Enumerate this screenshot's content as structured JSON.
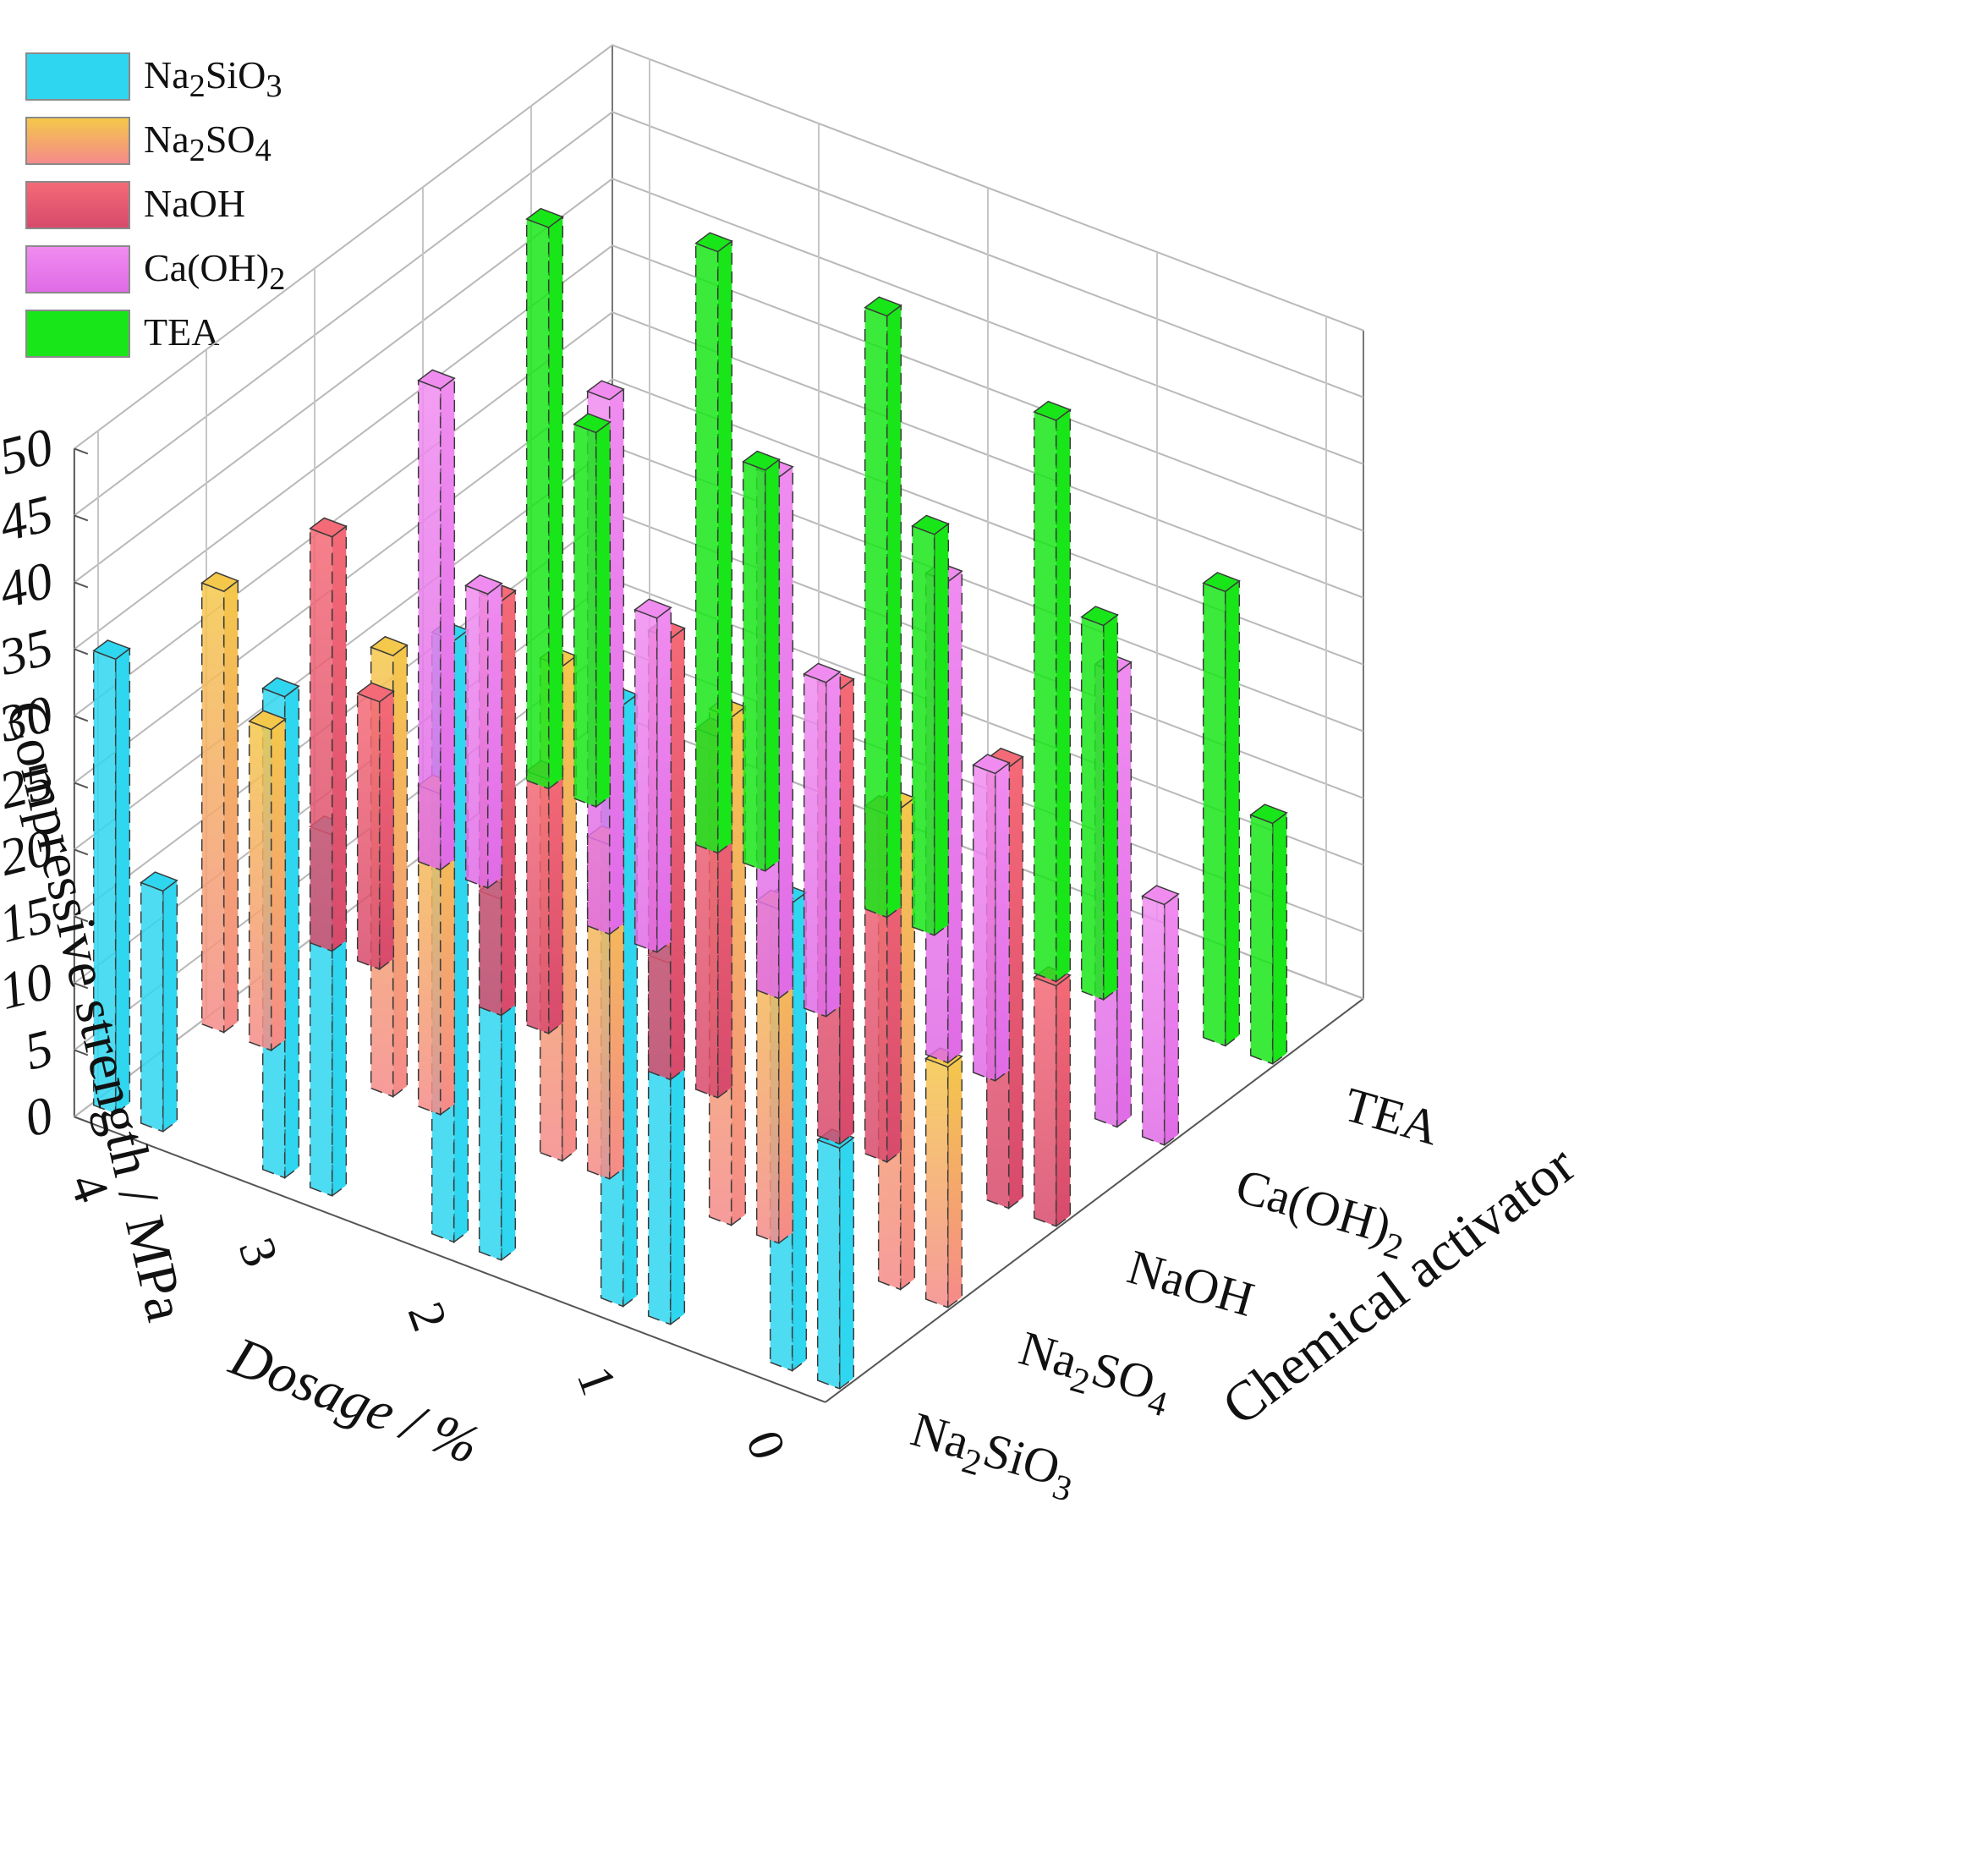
{
  "chart_data": {
    "type": "bar3d",
    "title": "",
    "zlabel": "Compressive strength / MPa",
    "xlabel": "Dosage / %",
    "ylabel": "Chemical activator",
    "zlim": [
      0,
      50
    ],
    "z_ticks": [
      "0",
      "5",
      "10",
      "15",
      "20",
      "25",
      "30",
      "35",
      "40",
      "45",
      "50"
    ],
    "dosages": [
      "0",
      "1",
      "2",
      "3",
      "4"
    ],
    "activators": [
      "Na2SiO3",
      "Na2SO4",
      "NaOH",
      "Ca(OH)2",
      "TEA"
    ],
    "activator_tick_labels": [
      {
        "base": "Na",
        "sub1": "2",
        "mid": "SiO",
        "sub2": "3"
      },
      {
        "base": "Na",
        "sub1": "2",
        "mid": "SO",
        "sub2": "4"
      },
      {
        "base": "NaOH",
        "sub1": "",
        "mid": "",
        "sub2": ""
      },
      {
        "base": "Ca(OH)",
        "sub1": "2",
        "mid": "",
        "sub2": ""
      },
      {
        "base": "TEA",
        "sub1": "",
        "mid": "",
        "sub2": ""
      }
    ],
    "series": [
      {
        "name": "Na2SiO3",
        "color_top": "#2fd6f0",
        "color_bottom": "#2fd6f0",
        "values": [
          {
            "dosage": "0",
            "front": 18,
            "back": 35
          },
          {
            "dosage": "1",
            "front": 27,
            "back": 45
          },
          {
            "dosage": "2",
            "front": 27,
            "back": 45
          },
          {
            "dosage": "3",
            "front": 27,
            "back": 36
          },
          {
            "dosage": "4",
            "front": 18,
            "back": 34
          }
        ]
      },
      {
        "name": "Na2SO4",
        "color_top": "#f4c84a",
        "color_bottom": "#f58a8a",
        "values": [
          {
            "dosage": "0",
            "front": 18,
            "back": 36
          },
          {
            "dosage": "1",
            "front": 25,
            "back": 38
          },
          {
            "dosage": "2",
            "front": 25,
            "back": 37
          },
          {
            "dosage": "3",
            "front": 24,
            "back": 33
          },
          {
            "dosage": "4",
            "front": 24,
            "back": 33
          }
        ]
      },
      {
        "name": "NaOH",
        "color_top": "#f46a76",
        "color_bottom": "#d74a6c",
        "values": [
          {
            "dosage": "0",
            "front": 18,
            "back": 33
          },
          {
            "dosage": "1",
            "front": 26,
            "back": 34
          },
          {
            "dosage": "2",
            "front": 27,
            "back": 33
          },
          {
            "dosage": "3",
            "front": 19,
            "back": 31
          },
          {
            "dosage": "4",
            "front": 20,
            "back": 31
          }
        ]
      },
      {
        "name": "Ca(OH)2",
        "color_top": "#f08cf0",
        "color_bottom": "#e06be6",
        "values": [
          {
            "dosage": "0",
            "front": 18,
            "back": 34
          },
          {
            "dosage": "1",
            "front": 23,
            "back": 36
          },
          {
            "dosage": "2",
            "front": 25,
            "back": 39
          },
          {
            "dosage": "3",
            "front": 25,
            "back": 40
          },
          {
            "dosage": "4",
            "front": 22,
            "back": 36
          }
        ]
      },
      {
        "name": "TEA",
        "color_top": "#19e619",
        "color_bottom": "#19e619",
        "values": [
          {
            "dosage": "0",
            "front": 18,
            "back": 34
          },
          {
            "dosage": "1",
            "front": 28,
            "back": 42
          },
          {
            "dosage": "2",
            "front": 30,
            "back": 45
          },
          {
            "dosage": "3",
            "front": 30,
            "back": 45
          },
          {
            "dosage": "4",
            "front": 28,
            "back": 42
          }
        ]
      }
    ],
    "legend": {
      "position": "top-left",
      "items": [
        {
          "label_base": "Na",
          "label_sub1": "2",
          "label_mid": "SiO",
          "label_sub2": "3",
          "gradient_top": "#2fd6f0",
          "gradient_bottom": "#2fd6f0"
        },
        {
          "label_base": "Na",
          "label_sub1": "2",
          "label_mid": "SO",
          "label_sub2": "4",
          "gradient_top": "#f4c84a",
          "gradient_bottom": "#f58a8a"
        },
        {
          "label_base": "NaOH",
          "label_sub1": "",
          "label_mid": "",
          "label_sub2": "",
          "gradient_top": "#f46a76",
          "gradient_bottom": "#d74a6c"
        },
        {
          "label_base": "Ca(OH)",
          "label_sub1": "2",
          "label_mid": "",
          "label_sub2": "",
          "gradient_top": "#f08cf0",
          "gradient_bottom": "#e06be6"
        },
        {
          "label_base": "TEA",
          "label_sub1": "",
          "label_mid": "",
          "label_sub2": "",
          "gradient_top": "#19e619",
          "gradient_bottom": "#19e619"
        }
      ]
    }
  }
}
